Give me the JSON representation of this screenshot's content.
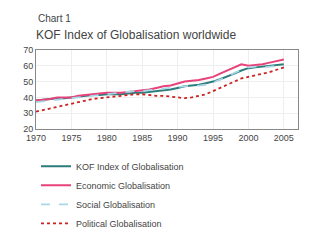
{
  "chart_data": {
    "type": "line",
    "subtitle": "Chart 1",
    "title": "KOF Index of Globalisation worldwide",
    "x": [
      1970,
      1971,
      1972,
      1973,
      1974,
      1975,
      1976,
      1977,
      1978,
      1979,
      1980,
      1981,
      1982,
      1983,
      1984,
      1985,
      1986,
      1987,
      1988,
      1989,
      1990,
      1991,
      1992,
      1993,
      1994,
      1995,
      1996,
      1997,
      1998,
      1999,
      2000,
      2001,
      2002,
      2003,
      2004,
      2005
    ],
    "series": [
      {
        "name": "KOF Index of Globalisation",
        "color": "#2e7d7d",
        "line_style": "solid",
        "values": [
          38,
          38.5,
          39,
          39.5,
          39.5,
          40,
          40.5,
          41,
          41.5,
          41.5,
          42,
          42,
          42,
          42.5,
          43,
          43,
          43.5,
          44,
          44.5,
          45,
          46,
          47,
          47.5,
          48,
          49,
          50,
          51.5,
          53,
          55,
          57,
          58.5,
          59,
          59.5,
          60,
          60.5,
          61
        ]
      },
      {
        "name": "Economic Globalisation",
        "color": "#e8427a",
        "line_style": "solid",
        "values": [
          38,
          38.5,
          39,
          40,
          40,
          40,
          41,
          41.5,
          42,
          42.5,
          43,
          43,
          43,
          43.5,
          44,
          44.5,
          45,
          46,
          47,
          47.5,
          49,
          50,
          50.5,
          51,
          52,
          53,
          55,
          57,
          59.5,
          61,
          60,
          60.5,
          61,
          62,
          63,
          64
        ]
      },
      {
        "name": "Social Globalisation",
        "color": "#a8d8e8",
        "line_style": "dashed",
        "values": [
          37,
          37.5,
          38,
          38.5,
          39,
          39.5,
          40,
          40.5,
          41,
          41.5,
          42,
          42.5,
          43,
          43.5,
          44,
          44,
          44.5,
          45,
          45.5,
          46,
          46.5,
          47,
          47.5,
          47.5,
          48,
          49.5,
          51,
          53,
          55.5,
          57.5,
          59,
          59.5,
          59,
          59.5,
          60,
          59
        ]
      },
      {
        "name": "Political Globalisation",
        "color": "#cc2222",
        "line_style": "dotted",
        "values": [
          31,
          32,
          33,
          34,
          35,
          36,
          37,
          38,
          39,
          39.5,
          40,
          40.5,
          41,
          41.5,
          42,
          42,
          41.5,
          41,
          41,
          40.5,
          40,
          39.5,
          40,
          41,
          42,
          44,
          46,
          48,
          50,
          52,
          53,
          54,
          55,
          56,
          57.5,
          59
        ]
      }
    ],
    "xlim": [
      1970,
      2007
    ],
    "xticks": [
      1970,
      1975,
      1980,
      1985,
      1990,
      1995,
      2000,
      2005
    ],
    "ylim": [
      20,
      70
    ],
    "yticks": [
      20,
      30,
      40,
      50,
      60,
      70
    ],
    "grid": true,
    "legend": "bottom"
  }
}
